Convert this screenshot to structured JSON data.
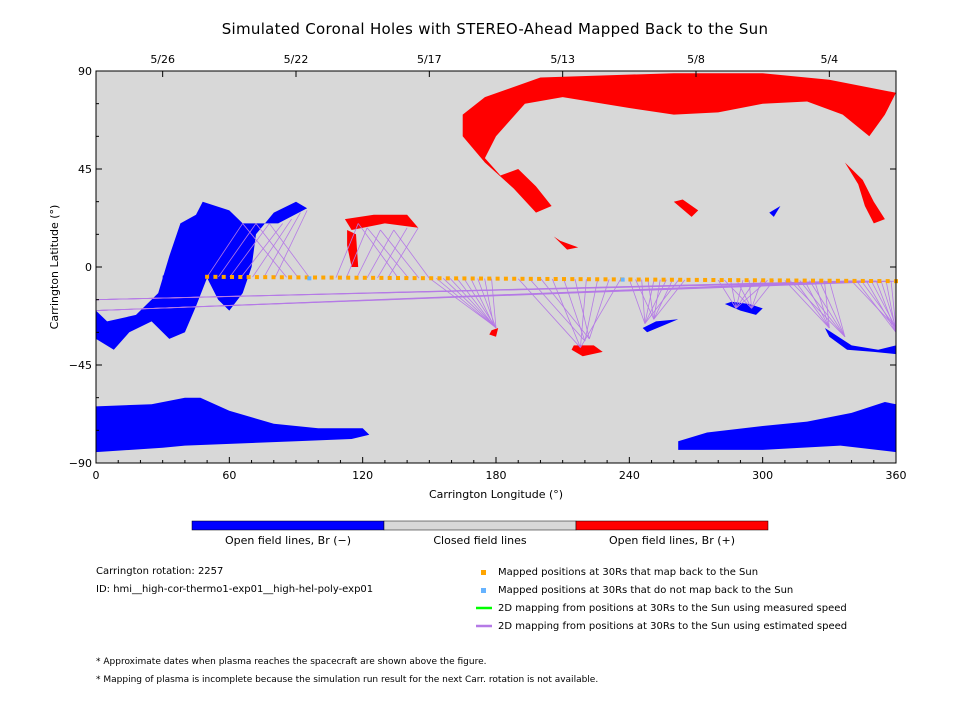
{
  "chart_data": {
    "type": "scatter",
    "title": "Simulated Coronal Holes with STEREO-Ahead Mapped Back to the Sun",
    "xlabel": "Carrington Longitude (°)",
    "ylabel": "Carrington Latitude (°)",
    "xlim": [
      0,
      360
    ],
    "ylim": [
      -90,
      90
    ],
    "x_ticks": [
      0,
      60,
      120,
      180,
      240,
      300,
      360
    ],
    "y_ticks": [
      -90,
      -45,
      0,
      45,
      90
    ],
    "top_axis_dates": [
      {
        "label": "5/26",
        "lon": 30
      },
      {
        "label": "5/22",
        "lon": 90
      },
      {
        "label": "5/17",
        "lon": 150
      },
      {
        "label": "5/13",
        "lon": 210
      },
      {
        "label": "5/8",
        "lon": 270
      },
      {
        "label": "5/4",
        "lon": 330
      }
    ],
    "background_color": "#d8d8d8",
    "colors": {
      "negative": "#0000ff",
      "positive": "#ff0000",
      "mapped": "#ffa500",
      "unmapped": "#66b3ff",
      "measured_line": "#00ff00",
      "estimated_line": "#b57ae6"
    },
    "negative_holes": [
      [
        [
          0,
          -85
        ],
        [
          30,
          -83
        ],
        [
          40,
          -82
        ],
        [
          90,
          -80
        ],
        [
          115,
          -79
        ],
        [
          123,
          -77
        ],
        [
          120,
          -74
        ],
        [
          100,
          -74
        ],
        [
          80,
          -72
        ],
        [
          60,
          -66
        ],
        [
          47,
          -60
        ],
        [
          40,
          -60
        ],
        [
          25,
          -63
        ],
        [
          0,
          -64
        ]
      ],
      [
        [
          262,
          -84
        ],
        [
          300,
          -84
        ],
        [
          335,
          -82
        ],
        [
          360,
          -85
        ],
        [
          360,
          -63
        ],
        [
          355,
          -62
        ],
        [
          340,
          -67
        ],
        [
          320,
          -71
        ],
        [
          300,
          -73
        ],
        [
          275,
          -76
        ],
        [
          262,
          -80
        ]
      ],
      [
        [
          0,
          -33
        ],
        [
          8,
          -38
        ],
        [
          15,
          -30
        ],
        [
          25,
          -25
        ],
        [
          33,
          -33
        ],
        [
          40,
          -30
        ],
        [
          45,
          -18
        ],
        [
          50,
          -5
        ],
        [
          55,
          -15
        ],
        [
          60,
          -20
        ],
        [
          66,
          -12
        ],
        [
          70,
          0
        ],
        [
          72,
          15
        ],
        [
          80,
          25
        ],
        [
          90,
          30
        ],
        [
          95,
          27
        ],
        [
          82,
          20
        ],
        [
          66,
          20
        ],
        [
          60,
          26
        ],
        [
          48,
          30
        ],
        [
          45,
          24
        ],
        [
          38,
          20
        ],
        [
          33,
          5
        ],
        [
          28,
          -12
        ],
        [
          18,
          -22
        ],
        [
          5,
          -25
        ],
        [
          0,
          -20
        ]
      ],
      [
        [
          328,
          -28
        ],
        [
          340,
          -36
        ],
        [
          352,
          -38
        ],
        [
          360,
          -36
        ],
        [
          360,
          -40
        ],
        [
          350,
          -39
        ],
        [
          338,
          -38
        ],
        [
          330,
          -32
        ]
      ],
      [
        [
          246,
          -28
        ],
        [
          252,
          -25
        ],
        [
          262,
          -24
        ],
        [
          255,
          -27
        ],
        [
          248,
          -30
        ]
      ],
      [
        [
          283,
          -17
        ],
        [
          290,
          -20
        ],
        [
          297,
          -22
        ],
        [
          300,
          -19
        ],
        [
          294,
          -17
        ],
        [
          286,
          -16
        ]
      ],
      [
        [
          30,
          -4
        ],
        [
          36,
          -1
        ],
        [
          34,
          -8
        ],
        [
          30,
          -8
        ]
      ],
      [
        [
          303,
          25
        ],
        [
          308,
          28
        ],
        [
          305,
          23
        ]
      ]
    ],
    "positive_holes": [
      [
        [
          165,
          70
        ],
        [
          175,
          78
        ],
        [
          200,
          87
        ],
        [
          260,
          89
        ],
        [
          300,
          89
        ],
        [
          330,
          86
        ],
        [
          360,
          80
        ],
        [
          355,
          70
        ],
        [
          348,
          60
        ],
        [
          336,
          70
        ],
        [
          320,
          76
        ],
        [
          300,
          75
        ],
        [
          280,
          71
        ],
        [
          260,
          70
        ],
        [
          240,
          73
        ],
        [
          210,
          78
        ],
        [
          193,
          75
        ],
        [
          180,
          60
        ],
        [
          175,
          50
        ],
        [
          182,
          42
        ],
        [
          190,
          45
        ],
        [
          198,
          37
        ],
        [
          205,
          28
        ],
        [
          198,
          25
        ],
        [
          188,
          36
        ],
        [
          175,
          48
        ],
        [
          165,
          60
        ]
      ],
      [
        [
          337,
          48
        ],
        [
          345,
          40
        ],
        [
          350,
          30
        ],
        [
          355,
          22
        ],
        [
          350,
          20
        ],
        [
          346,
          28
        ],
        [
          343,
          38
        ]
      ],
      [
        [
          115,
          17
        ],
        [
          130,
          20
        ],
        [
          145,
          18
        ],
        [
          140,
          24
        ],
        [
          125,
          24
        ],
        [
          112,
          22
        ]
      ],
      [
        [
          113,
          17
        ],
        [
          117,
          15
        ],
        [
          118,
          0
        ],
        [
          115,
          0
        ],
        [
          113,
          10
        ]
      ],
      [
        [
          260,
          30
        ],
        [
          268,
          23
        ],
        [
          271,
          26
        ],
        [
          264,
          31
        ]
      ],
      [
        [
          206,
          14
        ],
        [
          212,
          8
        ],
        [
          217,
          9
        ],
        [
          209,
          12
        ]
      ],
      [
        [
          215,
          -36
        ],
        [
          224,
          -36
        ],
        [
          228,
          -39
        ],
        [
          219,
          -41
        ],
        [
          214,
          -38
        ]
      ],
      [
        [
          178,
          -29
        ],
        [
          181,
          -28
        ],
        [
          180,
          -32
        ],
        [
          177,
          -31
        ]
      ]
    ],
    "mapped_points": {
      "lon_start": 50,
      "lon_end": 360,
      "lat_start": -4.5,
      "lat_end": -6.5,
      "count": 84
    },
    "unmapped_points": [
      {
        "lon": 96,
        "lat": -5.2
      },
      {
        "lon": 237,
        "lat": -5.8
      }
    ],
    "estimated_mapping_groups": [
      {
        "targets": [
          [
            66,
            20
          ],
          [
            72,
            20
          ],
          [
            78,
            20
          ],
          [
            84,
            20
          ],
          [
            88,
            22
          ],
          [
            92,
            25
          ],
          [
            95,
            26
          ]
        ],
        "from_lon": 50,
        "to_lon": 96
      },
      {
        "targets": [
          [
            118,
            20
          ],
          [
            122,
            18
          ],
          [
            128,
            17
          ],
          [
            134,
            17
          ],
          [
            140,
            18
          ],
          [
            145,
            18
          ]
        ],
        "from_lon": 108,
        "to_lon": 150
      },
      {
        "targets": [
          [
            179,
            -27
          ],
          [
            180,
            -28
          ]
        ],
        "from_lon": 150,
        "to_lon": 178
      },
      {
        "targets": [
          [
            218,
            -37
          ],
          [
            220,
            -34
          ],
          [
            222,
            -33
          ]
        ],
        "from_lon": 190,
        "to_lon": 236
      },
      {
        "targets": [
          [
            247,
            -26
          ],
          [
            251,
            -24
          ]
        ],
        "from_lon": 240,
        "to_lon": 265
      },
      {
        "targets": [
          [
            288,
            -19
          ],
          [
            295,
            -19
          ]
        ],
        "from_lon": 280,
        "to_lon": 305
      },
      {
        "targets": [
          [
            330,
            -28
          ],
          [
            337,
            -32
          ]
        ],
        "from_lon": 310,
        "to_lon": 330
      },
      {
        "targets": [
          [
            0,
            -15
          ],
          [
            0,
            -20
          ]
        ],
        "from_lon": 340,
        "to_lon": 360
      },
      {
        "targets": [
          [
            360,
            -28
          ],
          [
            360,
            -30
          ]
        ],
        "from_lon": 340,
        "to_lon": 360
      }
    ]
  },
  "colorbar": {
    "labels": [
      "Open field lines, Br (−)",
      "Closed field lines",
      "Open field lines, Br (+)"
    ]
  },
  "info": {
    "rotation": "Carrington rotation: 2257",
    "id": "ID: hmi__high-cor-thermo1-exp01__high-hel-poly-exp01"
  },
  "legend": [
    "Mapped positions at 30Rs that map back to the Sun",
    "Mapped positions at 30Rs that do not map back to the Sun",
    "2D mapping from positions at 30Rs to the Sun using measured speed",
    "2D mapping from positions at 30Rs to the Sun using estimated speed"
  ],
  "notes": [
    "* Approximate dates when plasma reaches the spacecraft are shown above the figure.",
    "* Mapping of plasma is incomplete because the simulation run result for the next Carr. rotation is not available."
  ]
}
